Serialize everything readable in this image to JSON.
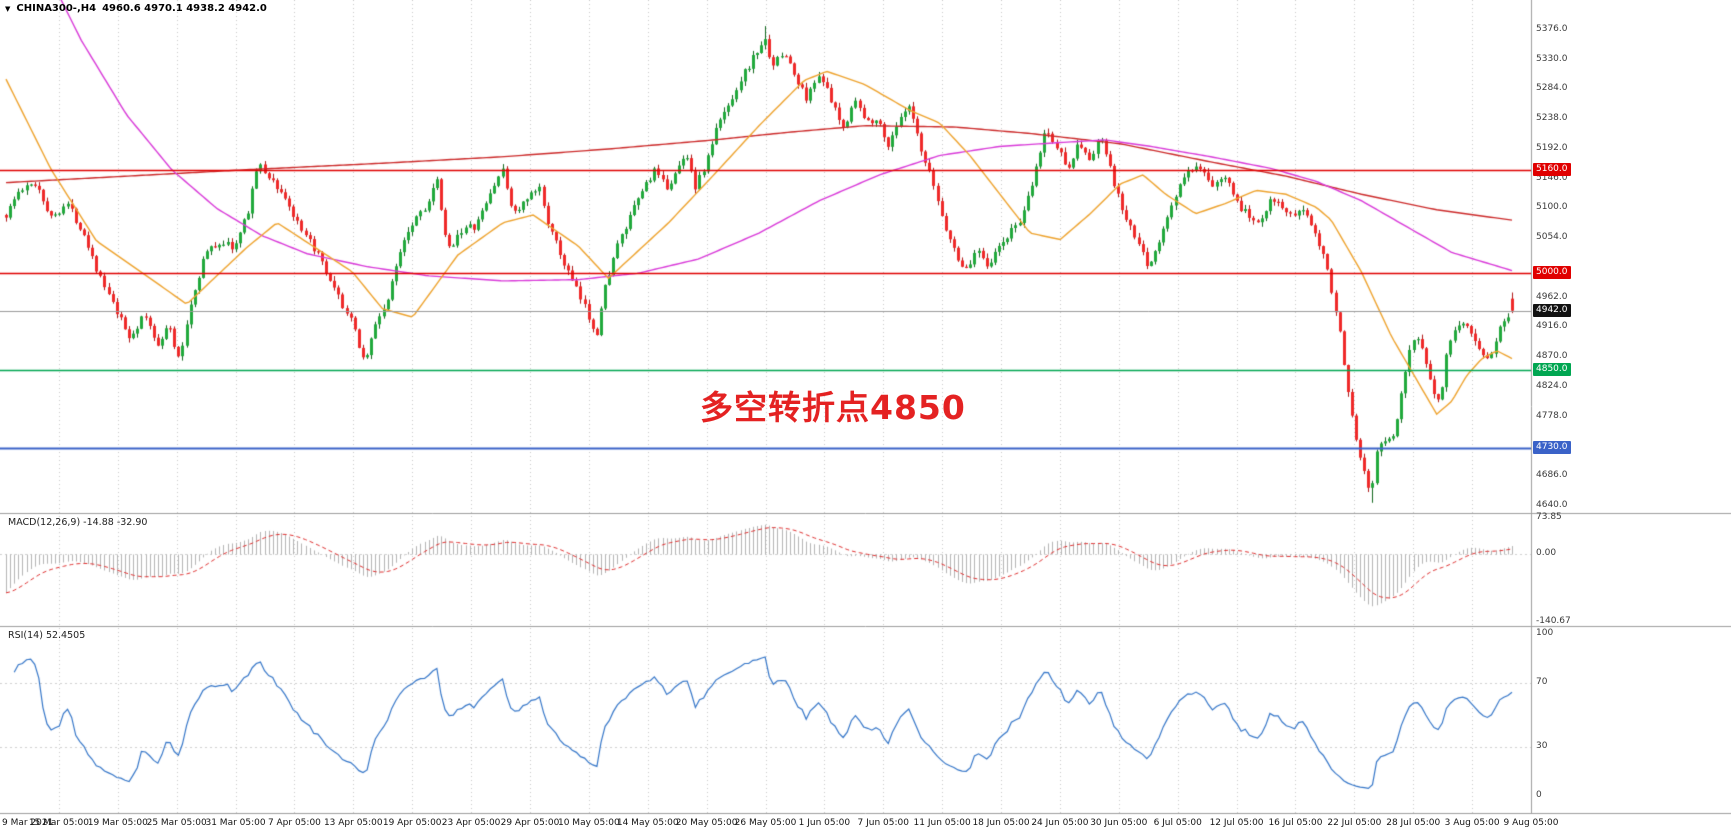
{
  "header": {
    "marker_icon": "▼",
    "symbol": "CHINA300-,H4",
    "ohlc_text": "4960.6 4970.1 4938.2 4942.0",
    "open": "4960.6",
    "high": "4970.1",
    "low": "4938.2",
    "close": "4942.0"
  },
  "annotation": {
    "text": "多空转折点4850",
    "color": "#e42222"
  },
  "macd": {
    "label": "MACD(12,26,9) -14.88 -32.90",
    "name": "MACD",
    "params": "12,26,9",
    "value": "-14.88",
    "signal_value": "-32.90",
    "axis": [
      {
        "text": "73.85",
        "value": 73.85
      },
      {
        "text": "0.00",
        "value": 0
      },
      {
        "text": "-140.67",
        "value": -140.67
      }
    ]
  },
  "rsi": {
    "label": "RSI(14) 52.4505",
    "name": "RSI",
    "period": "14",
    "value": "52.4505",
    "axis": [
      {
        "text": "100",
        "value": 100
      },
      {
        "text": "70",
        "value": 70
      },
      {
        "text": "30",
        "value": 30
      },
      {
        "text": "0",
        "value": 0
      }
    ]
  },
  "chart_data": {
    "type": "candlestick",
    "symbol": "CHINA300-",
    "timeframe": "H4",
    "title": "CHINA300-,H4",
    "last_candle": {
      "open": 4960.6,
      "high": 4970.1,
      "low": 4938.2,
      "close": 4942.0
    },
    "current_price": 4942.0,
    "y_axis": {
      "min": 4629,
      "max": 5422,
      "tick_step": 46,
      "ticks": [
        5376,
        5330,
        5284,
        5238,
        5192,
        5146,
        5100,
        5054,
        4962,
        4916,
        4870,
        4824,
        4778,
        4686,
        4640
      ]
    },
    "x_labels": [
      "9 Mar 2021",
      "15 Mar 05:00",
      "19 Mar 05:00",
      "25 Mar 05:00",
      "31 Mar 05:00",
      "7 Apr 05:00",
      "13 Apr 05:00",
      "19 Apr 05:00",
      "23 Apr 05:00",
      "29 Apr 05:00",
      "10 May 05:00",
      "14 May 05:00",
      "20 May 05:00",
      "26 May 05:00",
      "1 Jun 05:00",
      "7 Jun 05:00",
      "11 Jun 05:00",
      "18 Jun 05:00",
      "24 Jun 05:00",
      "30 Jun 05:00",
      "6 Jul 05:00",
      "12 Jul 05:00",
      "16 Jul 05:00",
      "22 Jul 05:00",
      "28 Jul 05:00",
      "3 Aug 05:00",
      "9 Aug 05:00"
    ],
    "horizontal_levels": [
      {
        "label": "5160.0",
        "price": 5160.0,
        "color": "#e00000",
        "width": 1.6
      },
      {
        "label": "5000.0",
        "price": 5000.0,
        "color": "#e00000",
        "width": 1.6
      },
      {
        "label": "4850.0",
        "price": 4850.0,
        "color": "#00a651",
        "width": 1.6
      },
      {
        "label": "4730.0",
        "price": 4730.0,
        "color": "#3a62c8",
        "width": 2
      }
    ],
    "colors": {
      "up": "#21a93c",
      "down": "#ef2929",
      "up_wick": "#14691f",
      "down_wick": "#b01a1a",
      "macd_hist": "#b5b5b5",
      "macd_signal": "#e03030",
      "rsi_line": "#3677c9",
      "grid": "#c9c9c9",
      "current_price_line": "#9a9a9a"
    },
    "extremes": {
      "high": {
        "t": 0.503,
        "price": 5382
      },
      "low": {
        "t": 0.906,
        "price": 4645
      }
    },
    "price_keyframes": [
      [
        0.0,
        5090
      ],
      [
        0.008,
        5125
      ],
      [
        0.02,
        5140
      ],
      [
        0.03,
        5085
      ],
      [
        0.04,
        5110
      ],
      [
        0.052,
        5060
      ],
      [
        0.062,
        4995
      ],
      [
        0.072,
        4945
      ],
      [
        0.082,
        4900
      ],
      [
        0.092,
        4935
      ],
      [
        0.1,
        4890
      ],
      [
        0.108,
        4920
      ],
      [
        0.115,
        4862
      ],
      [
        0.122,
        4948
      ],
      [
        0.132,
        5030
      ],
      [
        0.142,
        5048
      ],
      [
        0.152,
        5040
      ],
      [
        0.16,
        5090
      ],
      [
        0.167,
        5168
      ],
      [
        0.175,
        5148
      ],
      [
        0.185,
        5118
      ],
      [
        0.196,
        5062
      ],
      [
        0.205,
        5038
      ],
      [
        0.215,
        4985
      ],
      [
        0.224,
        4948
      ],
      [
        0.231,
        4915
      ],
      [
        0.238,
        4862
      ],
      [
        0.246,
        4925
      ],
      [
        0.254,
        4962
      ],
      [
        0.263,
        5050
      ],
      [
        0.272,
        5088
      ],
      [
        0.28,
        5108
      ],
      [
        0.286,
        5142
      ],
      [
        0.293,
        5032
      ],
      [
        0.301,
        5066
      ],
      [
        0.312,
        5072
      ],
      [
        0.321,
        5120
      ],
      [
        0.329,
        5162
      ],
      [
        0.337,
        5092
      ],
      [
        0.346,
        5112
      ],
      [
        0.354,
        5132
      ],
      [
        0.362,
        5062
      ],
      [
        0.371,
        5012
      ],
      [
        0.379,
        4972
      ],
      [
        0.386,
        4938
      ],
      [
        0.392,
        4906
      ],
      [
        0.399,
        4992
      ],
      [
        0.406,
        5042
      ],
      [
        0.413,
        5078
      ],
      [
        0.421,
        5122
      ],
      [
        0.43,
        5158
      ],
      [
        0.438,
        5132
      ],
      [
        0.445,
        5156
      ],
      [
        0.452,
        5186
      ],
      [
        0.458,
        5132
      ],
      [
        0.465,
        5172
      ],
      [
        0.472,
        5226
      ],
      [
        0.48,
        5262
      ],
      [
        0.488,
        5302
      ],
      [
        0.496,
        5332
      ],
      [
        0.503,
        5362
      ],
      [
        0.51,
        5322
      ],
      [
        0.517,
        5342
      ],
      [
        0.525,
        5296
      ],
      [
        0.532,
        5270
      ],
      [
        0.54,
        5312
      ],
      [
        0.548,
        5262
      ],
      [
        0.556,
        5222
      ],
      [
        0.563,
        5272
      ],
      [
        0.571,
        5232
      ],
      [
        0.578,
        5242
      ],
      [
        0.585,
        5196
      ],
      [
        0.592,
        5232
      ],
      [
        0.6,
        5256
      ],
      [
        0.608,
        5182
      ],
      [
        0.615,
        5142
      ],
      [
        0.622,
        5082
      ],
      [
        0.63,
        5032
      ],
      [
        0.638,
        5002
      ],
      [
        0.645,
        5042
      ],
      [
        0.652,
        5012
      ],
      [
        0.66,
        5042
      ],
      [
        0.668,
        5066
      ],
      [
        0.676,
        5092
      ],
      [
        0.683,
        5152
      ],
      [
        0.69,
        5222
      ],
      [
        0.698,
        5192
      ],
      [
        0.705,
        5166
      ],
      [
        0.713,
        5202
      ],
      [
        0.72,
        5172
      ],
      [
        0.727,
        5212
      ],
      [
        0.735,
        5142
      ],
      [
        0.742,
        5092
      ],
      [
        0.75,
        5052
      ],
      [
        0.758,
        5012
      ],
      [
        0.765,
        5042
      ],
      [
        0.772,
        5092
      ],
      [
        0.78,
        5142
      ],
      [
        0.788,
        5162
      ],
      [
        0.795,
        5152
      ],
      [
        0.803,
        5132
      ],
      [
        0.81,
        5156
      ],
      [
        0.817,
        5112
      ],
      [
        0.825,
        5086
      ],
      [
        0.833,
        5082
      ],
      [
        0.84,
        5122
      ],
      [
        0.848,
        5096
      ],
      [
        0.855,
        5082
      ],
      [
        0.862,
        5102
      ],
      [
        0.87,
        5062
      ],
      [
        0.877,
        5012
      ],
      [
        0.883,
        4942
      ],
      [
        0.889,
        4852
      ],
      [
        0.895,
        4762
      ],
      [
        0.901,
        4702
      ],
      [
        0.906,
        4662
      ],
      [
        0.911,
        4732
      ],
      [
        0.916,
        4742
      ],
      [
        0.921,
        4748
      ],
      [
        0.926,
        4802
      ],
      [
        0.931,
        4882
      ],
      [
        0.937,
        4902
      ],
      [
        0.942,
        4872
      ],
      [
        0.947,
        4822
      ],
      [
        0.952,
        4802
      ],
      [
        0.957,
        4882
      ],
      [
        0.962,
        4906
      ],
      [
        0.968,
        4922
      ],
      [
        0.974,
        4906
      ],
      [
        0.979,
        4882
      ],
      [
        0.985,
        4862
      ],
      [
        0.99,
        4908
      ],
      [
        1.0,
        4942
      ]
    ],
    "moving_averages": [
      {
        "name": "ma-slow-red",
        "color": "#cc2a2a",
        "keyframes": [
          [
            0,
            5140
          ],
          [
            0.08,
            5150
          ],
          [
            0.16,
            5160
          ],
          [
            0.25,
            5170
          ],
          [
            0.33,
            5180
          ],
          [
            0.4,
            5192
          ],
          [
            0.47,
            5206
          ],
          [
            0.52,
            5218
          ],
          [
            0.57,
            5228
          ],
          [
            0.63,
            5226
          ],
          [
            0.68,
            5216
          ],
          [
            0.74,
            5200
          ],
          [
            0.8,
            5172
          ],
          [
            0.85,
            5150
          ],
          [
            0.9,
            5122
          ],
          [
            0.95,
            5098
          ],
          [
            1.0,
            5082
          ]
        ]
      },
      {
        "name": "ma-mid-magenta",
        "color": "#d93ad9",
        "keyframes": [
          [
            0,
            5620
          ],
          [
            0.02,
            5500
          ],
          [
            0.05,
            5360
          ],
          [
            0.08,
            5245
          ],
          [
            0.11,
            5160
          ],
          [
            0.14,
            5100
          ],
          [
            0.17,
            5058
          ],
          [
            0.2,
            5030
          ],
          [
            0.24,
            5010
          ],
          [
            0.28,
            4996
          ],
          [
            0.33,
            4988
          ],
          [
            0.38,
            4990
          ],
          [
            0.42,
            5000
          ],
          [
            0.46,
            5022
          ],
          [
            0.5,
            5062
          ],
          [
            0.54,
            5112
          ],
          [
            0.58,
            5152
          ],
          [
            0.62,
            5182
          ],
          [
            0.66,
            5196
          ],
          [
            0.7,
            5202
          ],
          [
            0.73,
            5206
          ],
          [
            0.76,
            5196
          ],
          [
            0.8,
            5180
          ],
          [
            0.84,
            5162
          ],
          [
            0.87,
            5142
          ],
          [
            0.9,
            5112
          ],
          [
            0.93,
            5072
          ],
          [
            0.96,
            5032
          ],
          [
            1.0,
            5004
          ]
        ]
      },
      {
        "name": "ma-fast-orange",
        "color": "#eea32e",
        "keyframes": [
          [
            0,
            5300
          ],
          [
            0.03,
            5160
          ],
          [
            0.06,
            5050
          ],
          [
            0.1,
            4985
          ],
          [
            0.12,
            4952
          ],
          [
            0.16,
            5040
          ],
          [
            0.18,
            5078
          ],
          [
            0.23,
            5002
          ],
          [
            0.25,
            4945
          ],
          [
            0.27,
            4932
          ],
          [
            0.3,
            5028
          ],
          [
            0.33,
            5078
          ],
          [
            0.35,
            5090
          ],
          [
            0.38,
            5042
          ],
          [
            0.4,
            4992
          ],
          [
            0.44,
            5078
          ],
          [
            0.47,
            5152
          ],
          [
            0.5,
            5228
          ],
          [
            0.53,
            5298
          ],
          [
            0.545,
            5312
          ],
          [
            0.57,
            5292
          ],
          [
            0.6,
            5252
          ],
          [
            0.62,
            5232
          ],
          [
            0.64,
            5182
          ],
          [
            0.66,
            5122
          ],
          [
            0.68,
            5062
          ],
          [
            0.7,
            5052
          ],
          [
            0.72,
            5092
          ],
          [
            0.74,
            5138
          ],
          [
            0.755,
            5152
          ],
          [
            0.77,
            5122
          ],
          [
            0.79,
            5092
          ],
          [
            0.81,
            5108
          ],
          [
            0.83,
            5128
          ],
          [
            0.85,
            5122
          ],
          [
            0.87,
            5102
          ],
          [
            0.88,
            5082
          ],
          [
            0.9,
            5002
          ],
          [
            0.92,
            4902
          ],
          [
            0.94,
            4822
          ],
          [
            0.95,
            4782
          ],
          [
            0.96,
            4802
          ],
          [
            0.97,
            4842
          ],
          [
            0.98,
            4868
          ],
          [
            0.99,
            4880
          ],
          [
            1.0,
            4868
          ]
        ]
      }
    ],
    "indicators": [
      {
        "type": "MACD",
        "params": [
          12,
          26,
          9
        ],
        "values": [
          -14.88,
          -32.9
        ],
        "axis_range": [
          -140.67,
          73.85
        ]
      },
      {
        "type": "RSI",
        "params": [
          14
        ],
        "value": 52.4505,
        "axis_range": [
          0,
          100
        ],
        "levels": [
          70,
          30
        ]
      }
    ]
  }
}
